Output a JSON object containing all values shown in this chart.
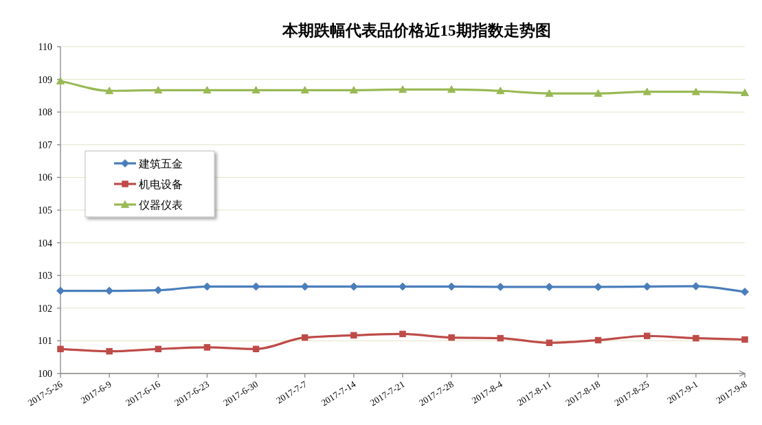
{
  "chart_data": {
    "type": "line",
    "title": "本期跌幅代表品价格近15期指数走势图",
    "categories": [
      "2017-5-26",
      "2017-6-9",
      "2017-6-16",
      "2017-6-23",
      "2017-6-30",
      "2017-7-7",
      "2017-7-14",
      "2017-7-21",
      "2017-7-28",
      "2017-8-4",
      "2017-8-11",
      "2017-8-18",
      "2017-8-25",
      "2017-9-1",
      "2017-9-8"
    ],
    "series": [
      {
        "name": "建筑五金",
        "color": "#4a7ebb",
        "marker": "diamond",
        "values": [
          102.53,
          102.53,
          102.55,
          102.66,
          102.66,
          102.66,
          102.66,
          102.66,
          102.66,
          102.65,
          102.65,
          102.65,
          102.66,
          102.67,
          102.5
        ]
      },
      {
        "name": "机电设备",
        "color": "#be4b48",
        "marker": "square",
        "values": [
          100.75,
          100.68,
          100.75,
          100.8,
          100.75,
          101.1,
          101.17,
          101.21,
          101.1,
          101.08,
          100.94,
          101.02,
          101.15,
          101.08,
          101.04
        ]
      },
      {
        "name": "仪器仪表",
        "color": "#98b954",
        "marker": "triangle",
        "values": [
          108.95,
          108.65,
          108.67,
          108.67,
          108.67,
          108.67,
          108.67,
          108.69,
          108.69,
          108.65,
          108.57,
          108.57,
          108.62,
          108.62,
          108.59
        ]
      }
    ],
    "ylim": [
      100,
      110
    ],
    "yticks": [
      100,
      101,
      102,
      103,
      104,
      105,
      106,
      107,
      108,
      109,
      110
    ],
    "grid": "y",
    "legend": "left",
    "line_style": "solid"
  }
}
